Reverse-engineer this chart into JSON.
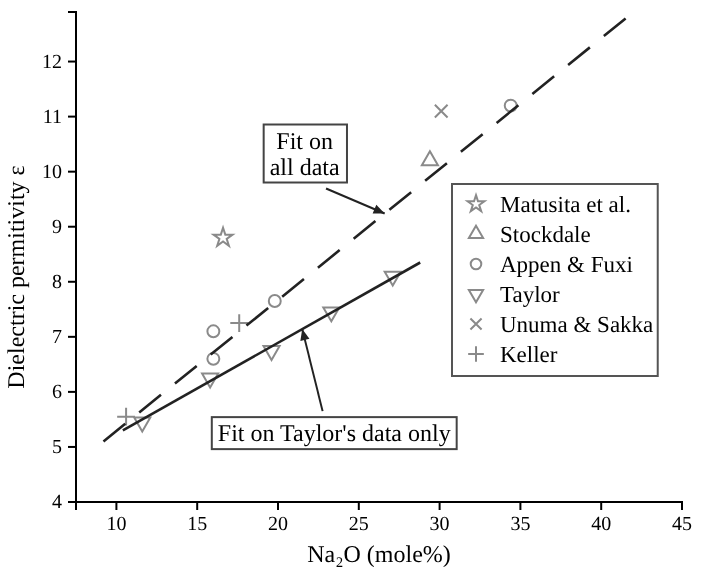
{
  "chart_data": {
    "type": "scatter",
    "xlabel": "Na₂O (mole%)",
    "ylabel": "Dielectric permitivity ε",
    "xlim": [
      7.5,
      45
    ],
    "ylim": [
      4,
      12.9
    ],
    "xticks": [
      10,
      15,
      20,
      25,
      30,
      35,
      40,
      45
    ],
    "yticks": [
      4,
      5,
      6,
      7,
      8,
      9,
      10,
      11,
      12
    ],
    "grid": false,
    "legend": "right",
    "series": [
      {
        "name": "Matusita et al.",
        "color": "#8a8a8a",
        "marker": "star",
        "x": [
          16.6
        ],
        "values": [
          8.8
        ]
      },
      {
        "name": "Stockdale",
        "color": "#8a8a8a",
        "marker": "triangle",
        "x": [
          29.4
        ],
        "values": [
          10.2
        ]
      },
      {
        "name": "Appen & Fuxi",
        "color": "#8a8a8a",
        "marker": "circle",
        "x": [
          16.0,
          16.0,
          19.8,
          34.4
        ],
        "values": [
          7.1,
          6.6,
          7.65,
          11.2
        ]
      },
      {
        "name": "Taylor",
        "color": "#8a8a8a",
        "marker": "triangle-down",
        "x": [
          11.6,
          15.8,
          19.6,
          23.3,
          27.1
        ],
        "values": [
          5.45,
          6.25,
          6.75,
          7.45,
          8.1
        ]
      },
      {
        "name": "Unuma & Sakka",
        "color": "#8a8a8a",
        "marker": "cross",
        "x": [
          30.1
        ],
        "values": [
          11.1
        ]
      },
      {
        "name": "Keller",
        "color": "#8a8a8a",
        "marker": "plus",
        "x": [
          10.6,
          17.6
        ],
        "values": [
          5.55,
          7.25
        ]
      },
      {
        "type": "line",
        "color": "#222222",
        "line_style": "dashed",
        "x": [
          9.2,
          42.0
        ],
        "values": [
          5.1,
          12.9
        ]
      },
      {
        "type": "line",
        "color": "#222222",
        "line_style": "solid",
        "x": [
          10.4,
          28.8
        ],
        "values": [
          5.3,
          8.35
        ]
      }
    ],
    "annotations": [
      {
        "text": "Fit on\nall data",
        "x": 26.6,
        "y": 9.24
      },
      {
        "text": "Fit on Taylor's data only",
        "x": 21.5,
        "y": 7.14
      }
    ]
  }
}
